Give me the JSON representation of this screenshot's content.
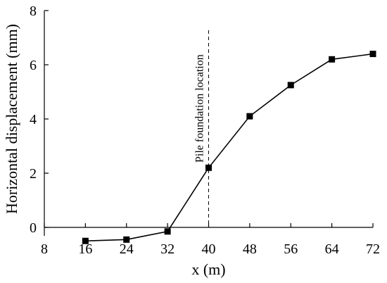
{
  "chart_data": {
    "type": "line",
    "title": "",
    "xlabel": "x (m)",
    "ylabel": "Horizontal displacement (mm)",
    "xlim": [
      8,
      72
    ],
    "ylim": [
      0,
      8
    ],
    "x_ticks": [
      8,
      16,
      24,
      32,
      40,
      48,
      56,
      64,
      72
    ],
    "y_ticks": [
      0,
      2,
      4,
      6,
      8
    ],
    "grid": false,
    "legend": "none",
    "series": [
      {
        "marker": "square",
        "color": "#000000",
        "x": [
          16,
          24,
          32,
          40,
          48,
          56,
          64,
          72
        ],
        "y": [
          -0.5,
          -0.45,
          -0.15,
          2.2,
          4.1,
          5.25,
          6.2,
          6.4
        ]
      }
    ],
    "annotations": [
      {
        "text": "Pile foundation location",
        "x": 40,
        "line_style": "dashed",
        "orientation": "vertical"
      }
    ]
  }
}
